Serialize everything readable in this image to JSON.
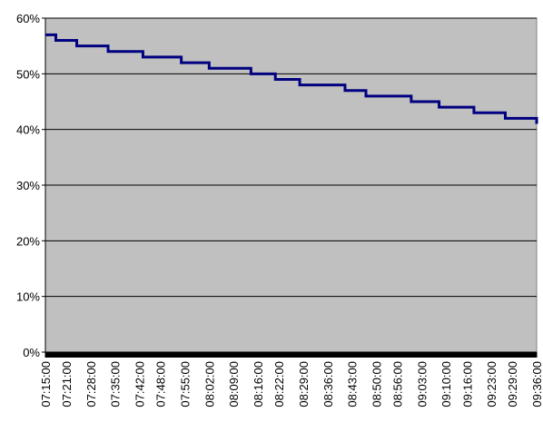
{
  "chart_data": {
    "type": "line",
    "step": "post",
    "color": "#000080",
    "background": "#c0c0c0",
    "grid": true,
    "x": [
      "07:15:00",
      "07:18:00",
      "07:24:00",
      "07:33:00",
      "07:43:00",
      "07:54:00",
      "08:02:00",
      "08:14:00",
      "08:21:00",
      "08:28:00",
      "08:41:00",
      "08:47:00",
      "09:00:00",
      "09:08:00",
      "09:18:00",
      "09:27:00",
      "09:36:00"
    ],
    "values": [
      57,
      56,
      55,
      54,
      53,
      52,
      51,
      50,
      49,
      48,
      47,
      46,
      45,
      44,
      43,
      42,
      41
    ],
    "xlim": [
      "07:15:00",
      "09:36:00"
    ],
    "xticks": [
      "07:15:00",
      "07:21:00",
      "07:28:00",
      "07:35:00",
      "07:42:00",
      "07:48:00",
      "07:55:00",
      "08:02:00",
      "08:09:00",
      "08:16:00",
      "08:22:00",
      "08:29:00",
      "08:36:00",
      "08:43:00",
      "08:50:00",
      "08:56:00",
      "09:03:00",
      "09:10:00",
      "09:16:00",
      "09:23:00",
      "09:29:00",
      "09:36:00"
    ],
    "ylim": [
      0,
      60
    ],
    "yticks": [
      {
        "value": 0,
        "label": "0%"
      },
      {
        "value": 10,
        "label": "10%"
      },
      {
        "value": 20,
        "label": "20%"
      },
      {
        "value": 30,
        "label": "30%"
      },
      {
        "value": 40,
        "label": "40%"
      },
      {
        "value": 50,
        "label": "50%"
      },
      {
        "value": 60,
        "label": "60%"
      }
    ]
  }
}
